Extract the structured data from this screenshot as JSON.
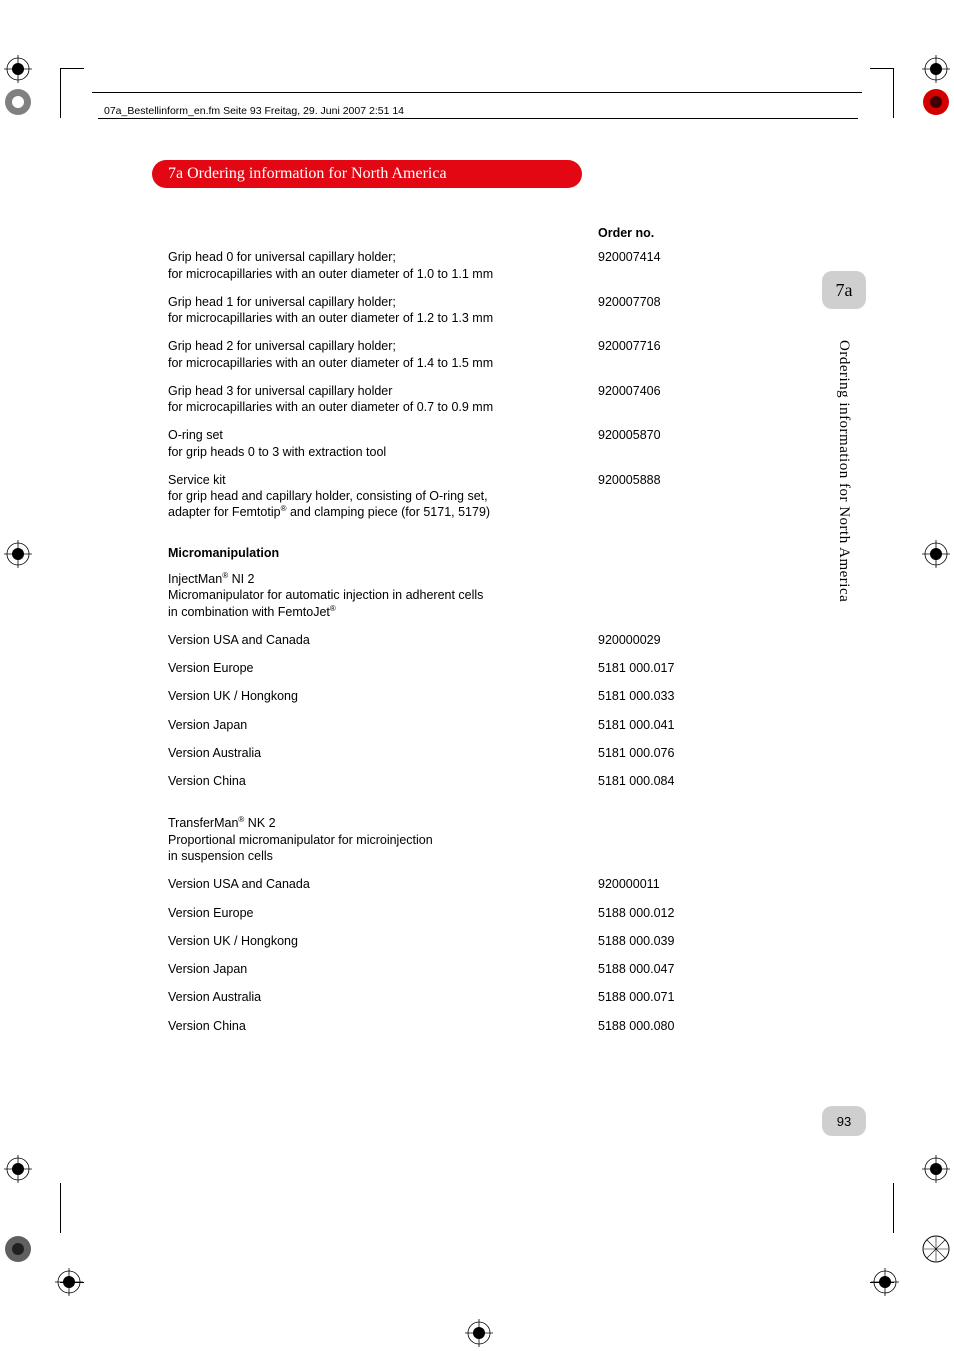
{
  "header": {
    "file_info": "07a_Bestellinform_en.fm  Seite 93  Freitag, 29. Juni 2007  2:51 14"
  },
  "section": {
    "tab_label": "7a  Ordering information for North America"
  },
  "table": {
    "order_header": "Order no.",
    "rows": [
      {
        "desc": "Grip head 0 for universal capillary holder;\nfor microcapillaries with an outer diameter of 1.0 to 1.1 mm",
        "orderno": "920007414"
      },
      {
        "desc": "Grip head 1 for universal capillary holder;\nfor microcapillaries with an outer diameter of 1.2 to 1.3 mm",
        "orderno": "920007708"
      },
      {
        "desc": "Grip head 2 for universal capillary holder;\nfor microcapillaries with an outer diameter of 1.4 to 1.5 mm",
        "orderno": "920007716"
      },
      {
        "desc": "Grip head 3 for universal capillary holder\nfor microcapillaries with an outer diameter of 0.7 to 0.9 mm",
        "orderno": "920007406"
      },
      {
        "desc": "O-ring set\nfor grip heads 0 to 3 with extraction tool",
        "orderno": "920005870"
      },
      {
        "desc": "Service kit\nfor grip head and capillary holder, consisting of O-ring set,\nadapter for Femtotip® and clamping piece (for 5171, 5179)",
        "orderno": "920005888"
      }
    ]
  },
  "micromanipulation": {
    "heading": "Micromanipulation",
    "group1": {
      "title": "InjectMan® NI 2\nMicromanipulator for automatic injection in adherent cells\nin combination with FemtoJet®",
      "rows": [
        {
          "desc": "Version USA and Canada",
          "orderno": "920000029"
        },
        {
          "desc": "Version Europe",
          "orderno": "5181 000.017"
        },
        {
          "desc": "Version UK / Hongkong",
          "orderno": "5181 000.033"
        },
        {
          "desc": "Version Japan",
          "orderno": "5181 000.041"
        },
        {
          "desc": "Version Australia",
          "orderno": "5181 000.076"
        },
        {
          "desc": "Version China",
          "orderno": "5181 000.084"
        }
      ]
    },
    "group2": {
      "title": "TransferMan® NK 2\nProportional micromanipulator for microinjection\nin suspension cells",
      "rows": [
        {
          "desc": "Version USA and Canada",
          "orderno": "920000011"
        },
        {
          "desc": "Version Europe",
          "orderno": "5188 000.012"
        },
        {
          "desc": "Version UK / Hongkong",
          "orderno": "5188 000.039"
        },
        {
          "desc": "Version Japan",
          "orderno": "5188 000.047"
        },
        {
          "desc": "Version Australia",
          "orderno": "5188 000.071"
        },
        {
          "desc": "Version China",
          "orderno": "5188 000.080"
        }
      ]
    }
  },
  "sidebar": {
    "tab_label": "7a",
    "vertical_text": "Ordering information for North America",
    "page_number": "93"
  },
  "colors": {
    "red": "#e30613",
    "grey_tab": "#cfcfcf"
  }
}
